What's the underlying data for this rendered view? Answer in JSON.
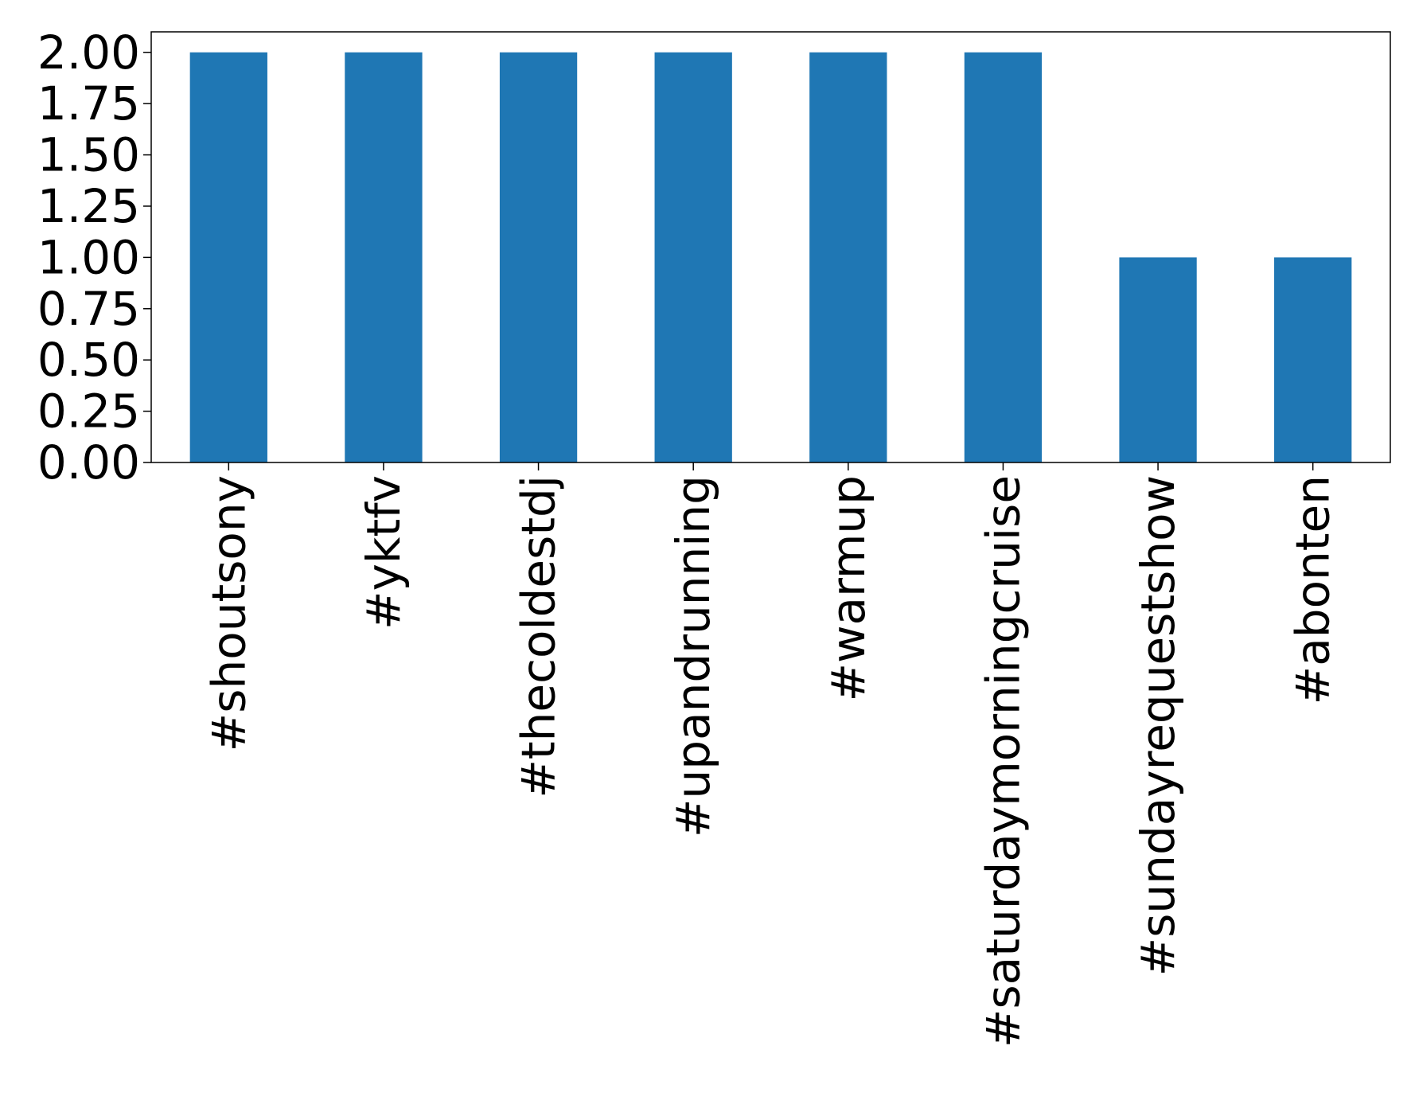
{
  "chart_data": {
    "type": "bar",
    "title": "",
    "xlabel": "",
    "ylabel": "",
    "categories": [
      "#shoutsony",
      "#yktfv",
      "#thecoldestdj",
      "#upandrunning",
      "#warmup",
      "#saturdaymorningcruise",
      "#sundayrequestshow",
      "#abonten"
    ],
    "values": [
      2,
      2,
      2,
      2,
      2,
      2,
      1,
      1
    ],
    "ylim": [
      0,
      2.1
    ],
    "yticks": [
      "0.00",
      "0.25",
      "0.50",
      "0.75",
      "1.00",
      "1.25",
      "1.50",
      "1.75",
      "2.00"
    ],
    "grid": false,
    "legend": false,
    "bar_color": "#1f77b4",
    "frame_color": "#000000"
  }
}
